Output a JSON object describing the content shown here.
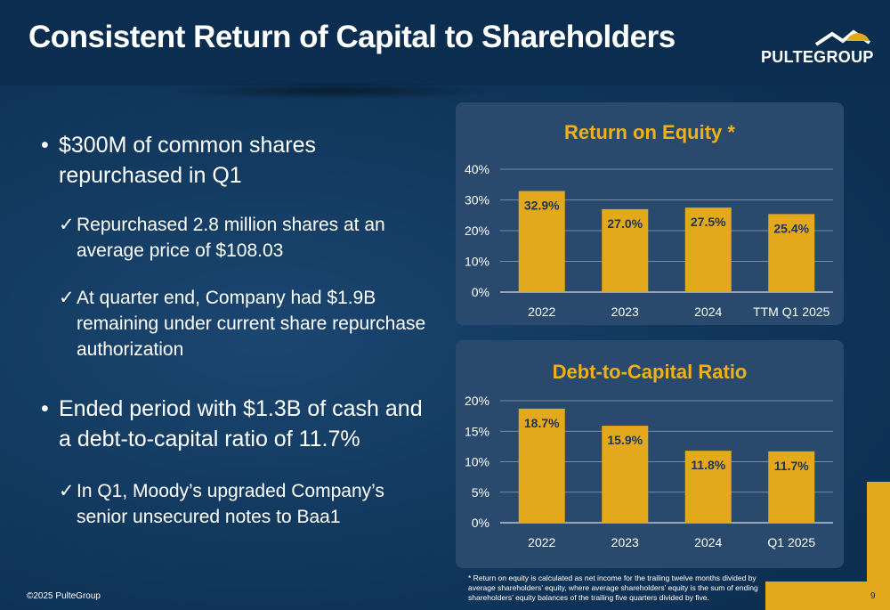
{
  "title": "Consistent Return of Capital to Shareholders",
  "logo": {
    "text": "PULTEGROUP",
    "icon": "roofline-logo-icon"
  },
  "bullets": [
    {
      "text": "$300M of common shares repurchased in Q1",
      "subs": [
        "Repurchased 2.8 million shares at an average price of $108.03",
        "At quarter end, Company had $1.9B remaining under current share repurchase authorization"
      ]
    },
    {
      "text": "Ended period with $1.3B of cash and a debt-to-capital ratio of 11.7%",
      "subs": [
        "In Q1, Moody’s upgraded Company’s senior unsecured notes to Baa1"
      ]
    }
  ],
  "colors": {
    "accent": "#e3a81b",
    "bar": "#e3a81b",
    "title_gold": "#f0b118",
    "background": "#0e3356",
    "panel": "#294a6d"
  },
  "chart_data": [
    {
      "type": "bar",
      "title": "Return on Equity *",
      "categories": [
        "2022",
        "2023",
        "2024",
        "TTM Q1 2025"
      ],
      "values": [
        32.9,
        27.0,
        27.5,
        25.4
      ],
      "data_labels": [
        "32.9%",
        "27.0%",
        "27.5%",
        "25.4%"
      ],
      "yticks": [
        "0%",
        "10%",
        "20%",
        "30%",
        "40%"
      ],
      "ylim": [
        0,
        40
      ],
      "grid": true
    },
    {
      "type": "bar",
      "title": "Debt-to-Capital Ratio",
      "categories": [
        "2022",
        "2023",
        "2024",
        "Q1 2025"
      ],
      "values": [
        18.7,
        15.9,
        11.8,
        11.7
      ],
      "data_labels": [
        "18.7%",
        "15.9%",
        "11.8%",
        "11.7%"
      ],
      "yticks": [
        "0%",
        "5%",
        "10%",
        "15%",
        "20%"
      ],
      "ylim": [
        0,
        20
      ],
      "grid": true
    }
  ],
  "footnote": "* Return on equity is calculated as net income for the trailing twelve months divided by average shareholders’ equity, where average shareholders’ equity is the sum of ending shareholders’ equity balances of the trailing five quarters divided by five.",
  "copyright": "©2025 PulteGroup",
  "page_number": "9"
}
